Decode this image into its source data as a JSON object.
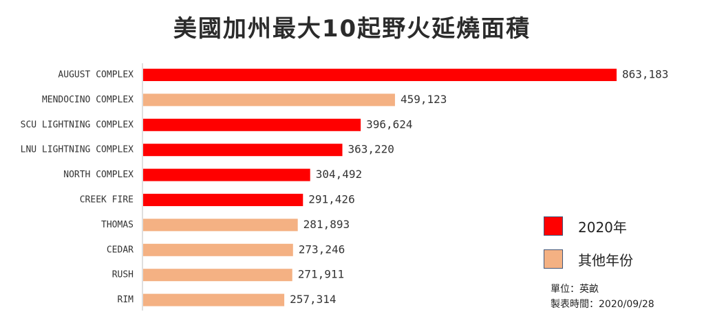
{
  "chart_data": {
    "type": "bar",
    "orientation": "horizontal",
    "title": "美國加州最大10起野火延燒面積",
    "categories": [
      "AUGUST COMPLEX",
      "MENDOCINO COMPLEX",
      "SCU LIGHTNING COMPLEX",
      "LNU LIGHTNING COMPLEX",
      "NORTH COMPLEX",
      "CREEK FIRE",
      "THOMAS",
      "CEDAR",
      "RUSH",
      "RIM"
    ],
    "values": [
      863183,
      459123,
      396624,
      363220,
      304492,
      291426,
      281893,
      273246,
      271911,
      257314
    ],
    "value_labels": [
      "863,183",
      "459,123",
      "396,624",
      "363,220",
      "304,492",
      "291,426",
      "281,893",
      "273,246",
      "271,911",
      "257,314"
    ],
    "groups": [
      "2020年",
      "其他年份",
      "2020年",
      "2020年",
      "2020年",
      "2020年",
      "其他年份",
      "其他年份",
      "其他年份",
      "其他年份"
    ],
    "xlim": [
      0,
      863183
    ],
    "grid": false,
    "legend_position": "right",
    "legend": [
      {
        "name": "2020年",
        "color": "#ff0000"
      },
      {
        "name": "其他年份",
        "color": "#f4b183"
      }
    ]
  },
  "notes": {
    "unit": "單位：英畝",
    "date": "製表時間：2020/09/28"
  }
}
